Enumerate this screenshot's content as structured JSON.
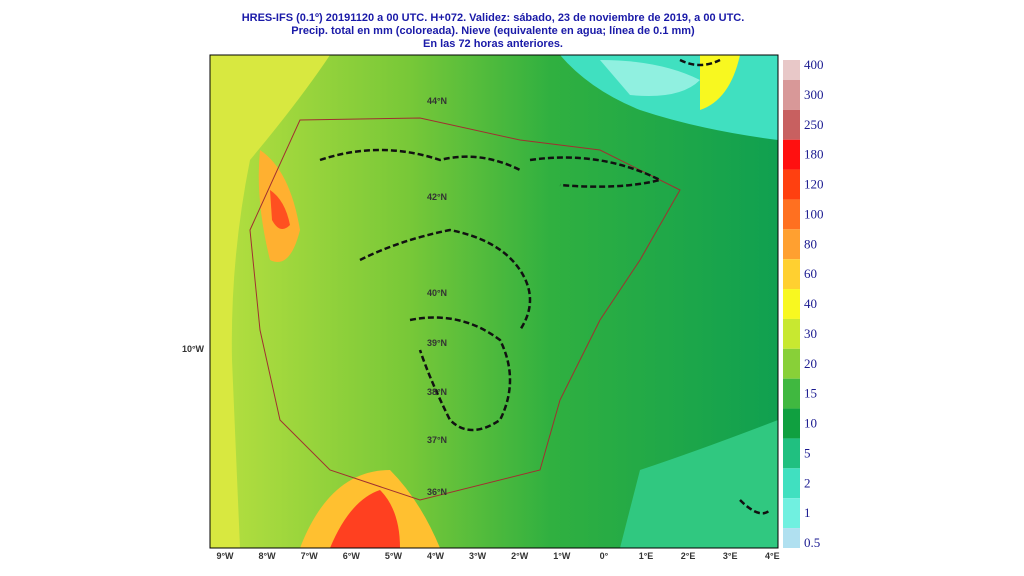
{
  "header": {
    "lines": [
      "HRES-IFS (0.1º) 20191120 a 00 UTC.  H+072. Validez: sábado, 23 de noviembre de 2019,  a  00 UTC.",
      "Precip. total en mm (coloreada). Nieve (equivalente en agua; línea de 0.1 mm)",
      "En las 72 horas anteriores."
    ]
  },
  "colorbar": {
    "levels": [
      "400",
      "300",
      "250",
      "180",
      "120",
      "100",
      "80",
      "60",
      "40",
      "30",
      "20",
      "15",
      "10",
      "5",
      "2",
      "1",
      "0.5"
    ],
    "colors": [
      "#e8c8c8",
      "#d89898",
      "#c86060",
      "#ff1010",
      "#ff4010",
      "#ff7020",
      "#ffa030",
      "#ffd030",
      "#f8f820",
      "#c8e830",
      "#88d038",
      "#40b840",
      "#10a040",
      "#20c080",
      "#40e0c0",
      "#70f0e0",
      "#b0e0f0"
    ]
  },
  "lon_labels": [
    "9°W",
    "8°W",
    "7°W",
    "6°W",
    "5°W",
    "4°W",
    "3°W",
    "2°W",
    "1°W",
    "0°",
    "1°E",
    "2°E",
    "3°E",
    "4°E"
  ],
  "lat_labels": [
    "44°N",
    "42°N",
    "40°N",
    "39°N",
    "38°N",
    "37°N",
    "36°N"
  ],
  "side_label": "10°W"
}
